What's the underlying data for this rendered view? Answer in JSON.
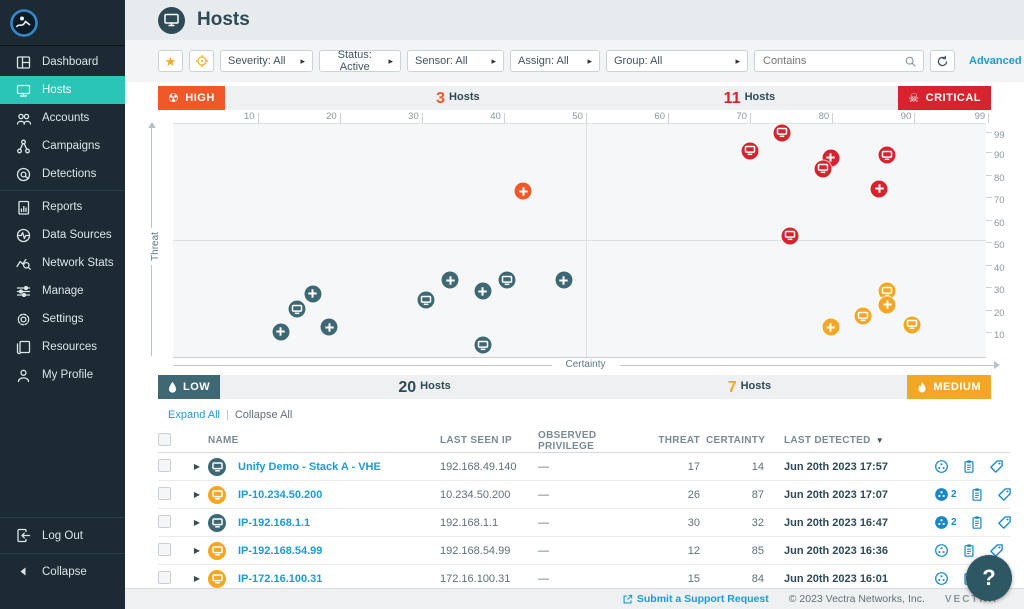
{
  "colors": {
    "critical": "#d8222e",
    "high": "#f0582a",
    "medium": "#f5a623",
    "low": "#3e6974",
    "link": "#1e9bd7",
    "sidebar_active": "#2bc5b8"
  },
  "sidebar": {
    "active_item": "Hosts",
    "groups": [
      [
        {
          "id": "dashboard",
          "label": "Dashboard",
          "icon": "dashboard-icon"
        },
        {
          "id": "hosts",
          "label": "Hosts",
          "icon": "monitor-icon"
        },
        {
          "id": "accounts",
          "label": "Accounts",
          "icon": "people-icon"
        },
        {
          "id": "campaigns",
          "label": "Campaigns",
          "icon": "share-nodes-icon"
        },
        {
          "id": "detections",
          "label": "Detections",
          "icon": "detection-target-icon"
        }
      ],
      [
        {
          "id": "reports",
          "label": "Reports",
          "icon": "report-document-icon"
        },
        {
          "id": "data-sources",
          "label": "Data Sources",
          "icon": "pulse-circle-icon"
        },
        {
          "id": "network-stats",
          "label": "Network Stats",
          "icon": "chart-magnifier-icon"
        },
        {
          "id": "manage",
          "label": "Manage",
          "icon": "sliders-icon"
        },
        {
          "id": "settings",
          "label": "Settings",
          "icon": "gear-icon"
        },
        {
          "id": "resources",
          "label": "Resources",
          "icon": "documents-icon"
        },
        {
          "id": "my-profile",
          "label": "My Profile",
          "icon": "person-icon"
        }
      ]
    ],
    "bottom": [
      {
        "id": "log-out",
        "label": "Log Out",
        "icon": "logout-icon"
      },
      {
        "id": "collapse",
        "label": "Collapse",
        "icon": "collapse-left-icon"
      }
    ]
  },
  "header": {
    "title": "Hosts"
  },
  "filters": {
    "favorite_button": "star-icon",
    "target_button": "crosshair-icon",
    "dropdowns": [
      {
        "id": "severity",
        "label": "Severity: All"
      },
      {
        "id": "status",
        "label": "Status: Active"
      },
      {
        "id": "sensor",
        "label": "Sensor: All"
      },
      {
        "id": "assign",
        "label": "Assign: All"
      },
      {
        "id": "group",
        "label": "Group: All"
      }
    ],
    "search_placeholder": "Contains",
    "advanced_label": "Advanced"
  },
  "quadrants": {
    "high": {
      "label": "HIGH",
      "count": "3",
      "unit": "Hosts"
    },
    "critical": {
      "label": "CRITICAL",
      "count": "11",
      "unit": "Hosts"
    },
    "low": {
      "label": "LOW",
      "count": "20",
      "unit": "Hosts"
    },
    "medium": {
      "label": "MEDIUM",
      "count": "7",
      "unit": "Hosts"
    }
  },
  "chart_data": {
    "type": "scatter",
    "xlabel": "Certainty",
    "ylabel": "Threat",
    "x_ticks": [
      10,
      20,
      30,
      40,
      50,
      60,
      70,
      80,
      90,
      99
    ],
    "y_ticks": [
      99,
      90,
      80,
      70,
      60,
      50,
      40,
      30,
      20,
      10
    ],
    "xlim": [
      0,
      99
    ],
    "ylim": [
      0,
      99
    ],
    "quadrant_divider": {
      "certainty": 51,
      "threat": 50
    },
    "points": [
      {
        "x": 75,
        "y": 99,
        "severity": "critical",
        "glyph": "monitor"
      },
      {
        "x": 71,
        "y": 91,
        "severity": "critical",
        "glyph": "monitor"
      },
      {
        "x": 81,
        "y": 88,
        "severity": "critical",
        "glyph": "plus"
      },
      {
        "x": 88,
        "y": 89,
        "severity": "critical",
        "glyph": "monitor"
      },
      {
        "x": 80,
        "y": 83,
        "severity": "critical",
        "glyph": "monitor"
      },
      {
        "x": 87,
        "y": 74,
        "severity": "critical",
        "glyph": "plus"
      },
      {
        "x": 76,
        "y": 53,
        "severity": "critical",
        "glyph": "monitor"
      },
      {
        "x": 43,
        "y": 73,
        "severity": "high",
        "glyph": "plus"
      },
      {
        "x": 34,
        "y": 33,
        "severity": "low",
        "glyph": "plus"
      },
      {
        "x": 41,
        "y": 33,
        "severity": "low",
        "glyph": "monitor"
      },
      {
        "x": 48,
        "y": 33,
        "severity": "low",
        "glyph": "plus"
      },
      {
        "x": 38,
        "y": 28,
        "severity": "low",
        "glyph": "plus"
      },
      {
        "x": 17,
        "y": 27,
        "severity": "low",
        "glyph": "plus"
      },
      {
        "x": 31,
        "y": 24,
        "severity": "low",
        "glyph": "monitor"
      },
      {
        "x": 15,
        "y": 20,
        "severity": "low",
        "glyph": "monitor"
      },
      {
        "x": 19,
        "y": 12,
        "severity": "low",
        "glyph": "plus"
      },
      {
        "x": 13,
        "y": 10,
        "severity": "low",
        "glyph": "plus"
      },
      {
        "x": 38,
        "y": 4,
        "severity": "low",
        "glyph": "monitor"
      },
      {
        "x": 88,
        "y": 28,
        "severity": "medium",
        "glyph": "monitor"
      },
      {
        "x": 88,
        "y": 22,
        "severity": "medium",
        "glyph": "plus"
      },
      {
        "x": 85,
        "y": 17,
        "severity": "medium",
        "glyph": "monitor"
      },
      {
        "x": 81,
        "y": 12,
        "severity": "medium",
        "glyph": "plus"
      },
      {
        "x": 91,
        "y": 13,
        "severity": "medium",
        "glyph": "monitor"
      }
    ]
  },
  "table": {
    "expand_all": "Expand All",
    "collapse_all": "Collapse All",
    "columns": [
      "NAME",
      "LAST SEEN IP",
      "OBSERVED PRIVILEGE",
      "THREAT",
      "CERTAINTY",
      "LAST DETECTED"
    ],
    "rows": [
      {
        "name": "Unify Demo - Stack A - VHE",
        "severity": "low",
        "last_seen_ip": "192.168.49.140",
        "observed_privilege": "—",
        "threat": "17",
        "certainty": "14",
        "last_detected": "Jun 20th 2023 17:57",
        "detections_filled": false,
        "detections_count": ""
      },
      {
        "name": "IP-10.234.50.200",
        "severity": "medium",
        "last_seen_ip": "10.234.50.200",
        "observed_privilege": "—",
        "threat": "26",
        "certainty": "87",
        "last_detected": "Jun 20th 2023 17:07",
        "detections_filled": true,
        "detections_count": "2"
      },
      {
        "name": "IP-192.168.1.1",
        "severity": "low",
        "last_seen_ip": "192.168.1.1",
        "observed_privilege": "—",
        "threat": "30",
        "certainty": "32",
        "last_detected": "Jun 20th 2023 16:47",
        "detections_filled": true,
        "detections_count": "2"
      },
      {
        "name": "IP-192.168.54.99",
        "severity": "medium",
        "last_seen_ip": "192.168.54.99",
        "observed_privilege": "—",
        "threat": "12",
        "certainty": "85",
        "last_detected": "Jun 20th 2023 16:36",
        "detections_filled": false,
        "detections_count": ""
      },
      {
        "name": "IP-172.16.100.31",
        "severity": "medium",
        "last_seen_ip": "172.16.100.31",
        "observed_privilege": "—",
        "threat": "15",
        "certainty": "84",
        "last_detected": "Jun 20th 2023 16:01",
        "detections_filled": false,
        "detections_count": ""
      }
    ]
  },
  "footer": {
    "support_link": "Submit a Support Request",
    "copyright": "© 2023 Vectra Networks, Inc.",
    "brand": "VECTRA"
  },
  "help": {
    "label": "?"
  }
}
